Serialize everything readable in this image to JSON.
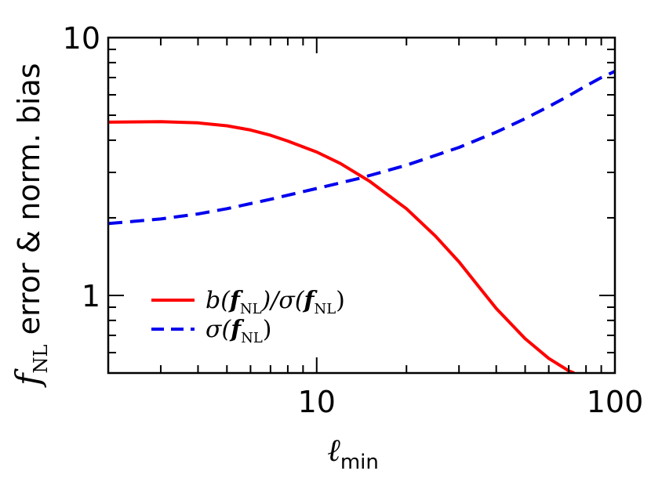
{
  "chart_data": {
    "type": "line",
    "xscale": "log",
    "yscale": "log",
    "xlim": [
      2,
      100
    ],
    "ylim": [
      0.5,
      10
    ],
    "xlabel": {
      "main": "ℓ",
      "sub": "min"
    },
    "ylabel": {
      "main": "f",
      "sub": "NL",
      "rest": " error & norm. bias"
    },
    "x_ticks": [
      {
        "value": 10,
        "label": "10"
      },
      {
        "value": 100,
        "label": "100"
      }
    ],
    "y_ticks": [
      {
        "value": 1,
        "label": "1"
      },
      {
        "value": 10,
        "label": "10"
      }
    ],
    "series": [
      {
        "name": "b(f_NL)/σ(f_NL)",
        "legend": {
          "pre": "b(",
          "f": "f",
          "sub1": "NL",
          "mid": ")/σ(",
          "f2": "f",
          "sub2": "NL",
          "post": ")"
        },
        "color": "#ff0000",
        "style": "solid",
        "points": [
          [
            2,
            4.7
          ],
          [
            3,
            4.72
          ],
          [
            4,
            4.67
          ],
          [
            5,
            4.55
          ],
          [
            6,
            4.38
          ],
          [
            7,
            4.18
          ],
          [
            8,
            3.97
          ],
          [
            10,
            3.6
          ],
          [
            12,
            3.25
          ],
          [
            15,
            2.78
          ],
          [
            20,
            2.17
          ],
          [
            25,
            1.7
          ],
          [
            30,
            1.35
          ],
          [
            35,
            1.08
          ],
          [
            40,
            0.89
          ],
          [
            50,
            0.68
          ],
          [
            60,
            0.57
          ],
          [
            70,
            0.51
          ],
          [
            73,
            0.5
          ]
        ]
      },
      {
        "name": "σ(f_NL)",
        "legend": {
          "pre": "σ(",
          "f": "f",
          "sub1": "NL",
          "post": ")"
        },
        "color": "#0000ee",
        "style": "dashed",
        "points": [
          [
            2,
            1.9
          ],
          [
            3,
            1.98
          ],
          [
            4,
            2.07
          ],
          [
            5,
            2.17
          ],
          [
            7,
            2.36
          ],
          [
            10,
            2.6
          ],
          [
            14,
            2.85
          ],
          [
            20,
            3.2
          ],
          [
            30,
            3.75
          ],
          [
            40,
            4.3
          ],
          [
            50,
            4.85
          ],
          [
            60,
            5.4
          ],
          [
            70,
            5.95
          ],
          [
            80,
            6.5
          ],
          [
            90,
            7.0
          ],
          [
            100,
            7.4
          ]
        ]
      }
    ],
    "legend_position": "bottom-left",
    "grid": false
  }
}
